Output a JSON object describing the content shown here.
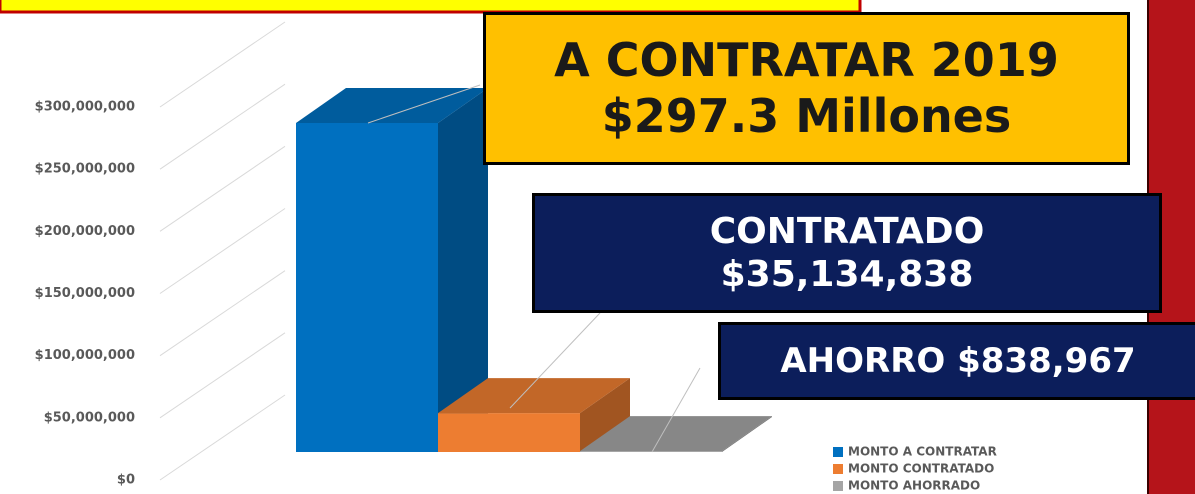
{
  "chart_data": {
    "type": "bar3d",
    "categories": [
      null
    ],
    "series": [
      {
        "name": "MONTO A CONTRATAR",
        "color": "#0070c0",
        "values": [
          297300000
        ],
        "value_labels": [
          "A CONTRATAR 2019\n$297.3 Millones"
        ]
      },
      {
        "name": "MONTO CONTRATADO",
        "color": "#ed7d31",
        "values": [
          35134838
        ],
        "value_labels": [
          "CONTRATADO\n$35,134,838"
        ]
      },
      {
        "name": "MONTO AHORRADO",
        "color": "#a5a5a5",
        "values": [
          838967
        ],
        "value_labels": [
          "AHORRO $838,967"
        ]
      }
    ],
    "ylim": [
      0,
      300000000
    ],
    "yticks": [
      {
        "value": 0,
        "label": "$0"
      },
      {
        "value": 50000000,
        "label": "$50,000,000"
      },
      {
        "value": 100000000,
        "label": "$100,000,000"
      },
      {
        "value": 150000000,
        "label": "$150,000,000"
      },
      {
        "value": 200000000,
        "label": "$200,000,000"
      },
      {
        "value": 250000000,
        "label": "$250,000,000"
      },
      {
        "value": 300000000,
        "label": "$300,000,000"
      }
    ],
    "grid": true,
    "legend": "bottom-right"
  }
}
